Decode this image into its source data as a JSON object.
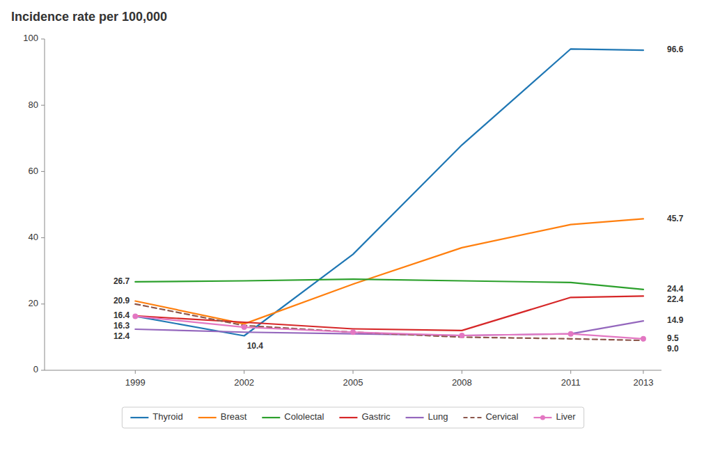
{
  "chart_data": {
    "type": "line",
    "title": "Incidence rate per 100,000",
    "x": [
      1999,
      2002,
      2005,
      2008,
      2011,
      2013
    ],
    "xlim": [
      1996.5,
      2013.5
    ],
    "xticks": [
      1999,
      2002,
      2005,
      2008,
      2011,
      2013
    ],
    "ylim": [
      0,
      100
    ],
    "yticks": [
      0,
      20,
      40,
      60,
      80,
      100
    ],
    "grid": false,
    "legend": "bottom",
    "series": [
      {
        "name": "Thyroid",
        "color": "#1f77b4",
        "line_style": "solid",
        "values": [
          16.3,
          10.4,
          35.0,
          68.0,
          97.0,
          96.6
        ]
      },
      {
        "name": "Breast",
        "color": "#ff7f0e",
        "line_style": "solid",
        "values": [
          20.9,
          14.0,
          26.0,
          37.0,
          44.0,
          45.7
        ]
      },
      {
        "name": "Cololectal",
        "color": "#2ca02c",
        "line_style": "solid",
        "values": [
          26.7,
          27.0,
          27.5,
          27.0,
          26.5,
          24.4
        ]
      },
      {
        "name": "Gastric",
        "color": "#d62728",
        "line_style": "solid",
        "values": [
          16.4,
          14.5,
          12.5,
          12.0,
          22.0,
          22.4
        ]
      },
      {
        "name": "Lung",
        "color": "#9467bd",
        "line_style": "solid",
        "values": [
          12.4,
          11.5,
          11.0,
          10.5,
          11.0,
          14.9
        ]
      },
      {
        "name": "Cervical",
        "color": "#8c564b",
        "line_style": "dashed",
        "values": [
          20.0,
          13.5,
          11.5,
          10.0,
          9.5,
          9.0
        ]
      },
      {
        "name": "Liver",
        "color": "#e377c2",
        "line_style": "solid",
        "marker": "circle",
        "values": [
          16.3,
          13.0,
          11.5,
          10.5,
          11.0,
          9.5
        ]
      }
    ],
    "annotations": [
      {
        "text": "96.6",
        "x": 2013,
        "y": 96.6
      },
      {
        "text": "45.7",
        "x": 2013,
        "y": 45.7
      },
      {
        "text": "24.4",
        "x": 2013,
        "y": 24.4
      },
      {
        "text": "22.4",
        "x": 2013,
        "y": 22.4
      },
      {
        "text": "14.9",
        "x": 2013,
        "y": 14.9
      },
      {
        "text": "9.0",
        "x": 2013,
        "y": 9.0
      },
      {
        "text": "9.5",
        "x": 2013,
        "y": 9.5
      },
      {
        "text": "26.7",
        "x": 1999,
        "y": 26.7
      },
      {
        "text": "20.9",
        "x": 1999,
        "y": 20.9
      },
      {
        "text": "16.4",
        "x": 1999,
        "y": 16.4
      },
      {
        "text": "16.3",
        "x": 1999,
        "y": 16.3
      },
      {
        "text": "12.4",
        "x": 1999,
        "y": 12.4
      },
      {
        "text": "10.4",
        "x": 2002,
        "y": 10.4
      }
    ]
  }
}
